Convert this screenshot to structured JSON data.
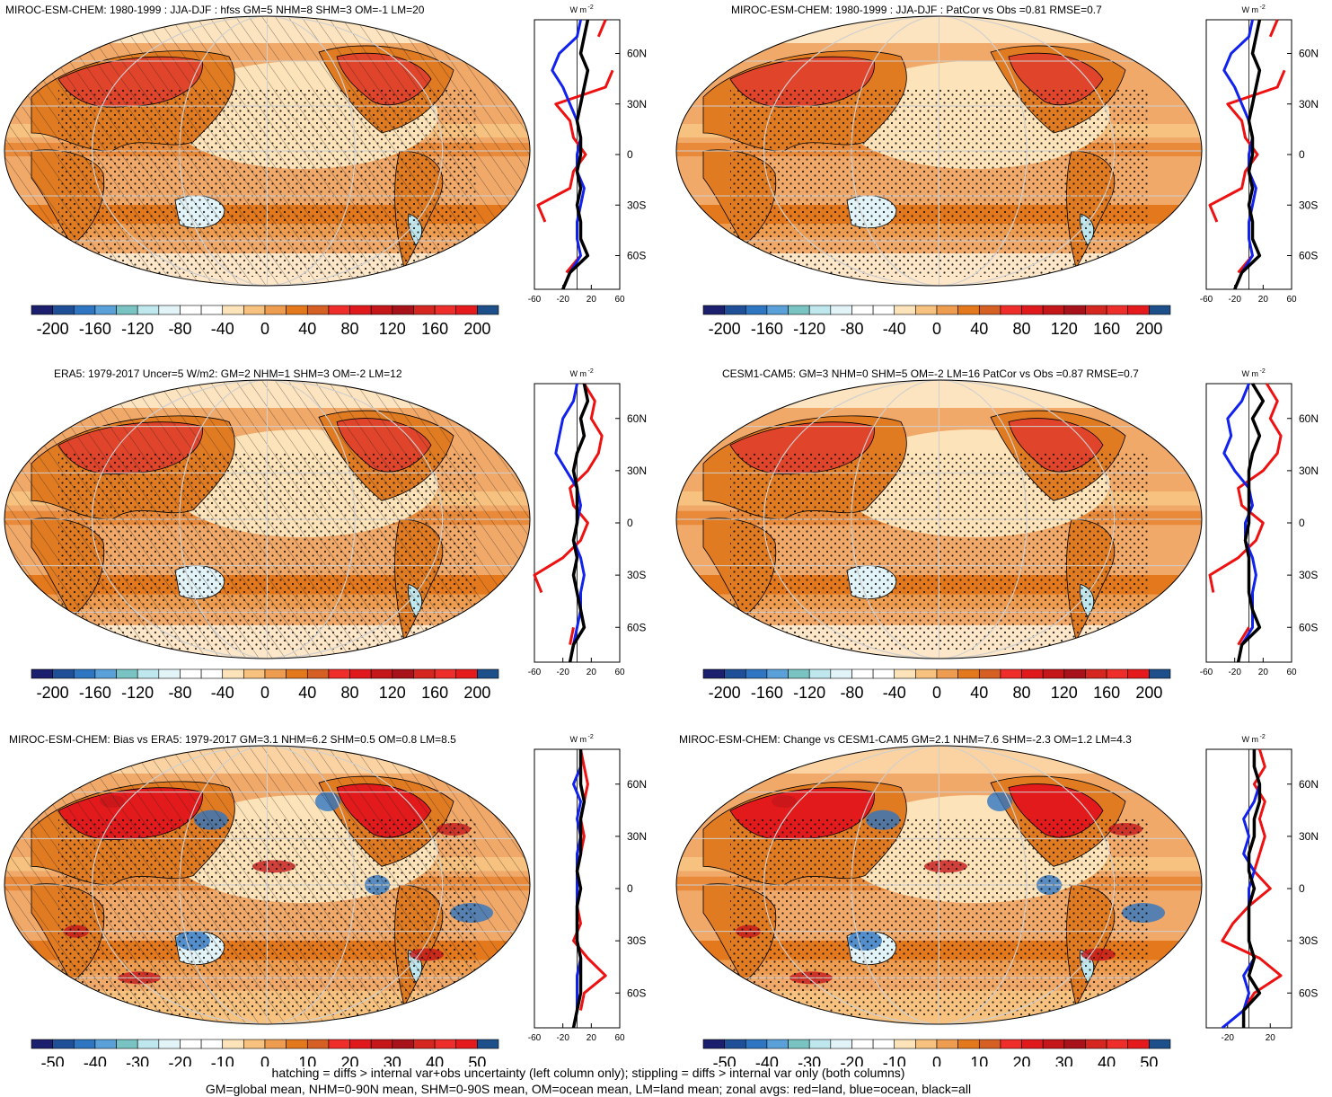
{
  "colors": {
    "scale": [
      "#1b1f6e",
      "#1f4f97",
      "#2f76c2",
      "#5aa1d9",
      "#79c3c3",
      "#bfe7ee",
      "#e3f4f8",
      "#ffffff",
      "#ffffff",
      "#fde3b9",
      "#f7c27f",
      "#ee9d50",
      "#e3781d",
      "#d65f23",
      "#ef2e2b",
      "#e01a1c",
      "#c5161a",
      "#a8121a",
      "#d5271f",
      "#ee2e2b",
      "#e41a1c",
      "#1d4f8a"
    ],
    "land_zonal": "#ee1111",
    "ocean_zonal": "#1122ee",
    "all_zonal": "#000000"
  },
  "panels": [
    {
      "title": "MIROC-ESM-CHEM: 1980-1999 : JJA-DJF : hfss GM=5 NHM=8 SHM=3 OM=-1 LM=20",
      "units": "W m",
      "units_exp": "-2",
      "cbar_labels": [
        "-200",
        "-160",
        "-120",
        "-80",
        "-40",
        "0",
        "40",
        "80",
        "120",
        "160",
        "200"
      ],
      "zonal_xticks": [
        "-60",
        "-20",
        "20",
        "60"
      ],
      "zonal_xrange": [
        -60,
        60
      ],
      "lat_labels": [
        "60N",
        "30N",
        "0",
        "30S",
        "60S"
      ],
      "hatching": true,
      "chart_data": {
        "type": "line",
        "lat": [
          -80,
          -70,
          -60,
          -50,
          -40,
          -30,
          -20,
          -10,
          0,
          10,
          20,
          30,
          40,
          50,
          60,
          70,
          80
        ],
        "series": [
          {
            "values": [
              null,
              -15,
              5,
              null,
              -45,
              -55,
              -10,
              -5,
              12,
              -5,
              -10,
              -30,
              40,
              50,
              null,
              30,
              40
            ]
          },
          {
            "values": [
              null,
              -10,
              5,
              0,
              0,
              5,
              10,
              0,
              0,
              5,
              0,
              -10,
              -20,
              -35,
              -25,
              0,
              5
            ]
          },
          {
            "values": [
              -20,
              -10,
              15,
              5,
              5,
              0,
              5,
              0,
              5,
              5,
              0,
              5,
              10,
              15,
              5,
              10,
              15
            ]
          }
        ]
      }
    },
    {
      "title": "MIROC-ESM-CHEM: 1980-1999 : JJA-DJF : PatCor vs Obs =0.81 RMSE=0.7",
      "units": "W m",
      "units_exp": "-2",
      "cbar_labels": [
        "-200",
        "-160",
        "-120",
        "-80",
        "-40",
        "0",
        "40",
        "80",
        "120",
        "160",
        "200"
      ],
      "zonal_xticks": [
        "-60",
        "-20",
        "20",
        "60"
      ],
      "zonal_xrange": [
        -60,
        60
      ],
      "lat_labels": [
        "60N",
        "30N",
        "0",
        "30S",
        "60S"
      ],
      "hatching": false,
      "chart_data": {
        "type": "line",
        "lat": [
          -80,
          -70,
          -60,
          -50,
          -40,
          -30,
          -20,
          -10,
          0,
          10,
          20,
          30,
          40,
          50,
          60,
          70,
          80
        ],
        "series": [
          {
            "values": [
              null,
              -15,
              5,
              null,
              -45,
              -55,
              -10,
              -5,
              12,
              -5,
              -10,
              -30,
              40,
              50,
              null,
              30,
              40
            ]
          },
          {
            "values": [
              null,
              -10,
              5,
              0,
              0,
              5,
              10,
              0,
              0,
              5,
              0,
              -10,
              -20,
              -35,
              -25,
              0,
              5
            ]
          },
          {
            "values": [
              -20,
              -10,
              15,
              5,
              5,
              0,
              5,
              0,
              5,
              5,
              0,
              5,
              10,
              15,
              5,
              10,
              15
            ]
          }
        ]
      }
    },
    {
      "title": "ERA5: 1979-2017 Uncer=5 W/m2: GM=2 NHM=1 SHM=3 OM=-2 LM=12",
      "units": "W m",
      "units_exp": "-2",
      "cbar_labels": [
        "-200",
        "-160",
        "-120",
        "-80",
        "-40",
        "0",
        "40",
        "80",
        "120",
        "160",
        "200"
      ],
      "zonal_xticks": [
        "-60",
        "-20",
        "20",
        "60"
      ],
      "zonal_xrange": [
        -60,
        60
      ],
      "lat_labels": [
        "60N",
        "30N",
        "0",
        "30S",
        "60S"
      ],
      "hatching": true,
      "chart_data": {
        "type": "line",
        "lat": [
          -80,
          -70,
          -60,
          -50,
          -40,
          -30,
          -20,
          -10,
          0,
          10,
          20,
          30,
          40,
          50,
          60,
          70,
          80
        ],
        "series": [
          {
            "values": [
              null,
              -10,
              -5,
              null,
              -50,
              -60,
              -20,
              5,
              15,
              -5,
              -10,
              15,
              30,
              35,
              20,
              25,
              10
            ]
          },
          {
            "values": [
              null,
              -5,
              0,
              5,
              5,
              10,
              5,
              -5,
              0,
              5,
              0,
              -15,
              -30,
              -25,
              -20,
              -5,
              0
            ]
          },
          {
            "values": [
              -10,
              -5,
              10,
              5,
              0,
              -5,
              0,
              -5,
              0,
              0,
              0,
              -5,
              0,
              10,
              5,
              15,
              10
            ]
          }
        ]
      }
    },
    {
      "title": "CESM1-CAM5: GM=3 NHM=0 SHM=5 OM=-2 LM=16 PatCor vs Obs =0.87 RMSE=0.7",
      "units": "W m",
      "units_exp": "-2",
      "cbar_labels": [
        "-200",
        "-160",
        "-120",
        "-80",
        "-40",
        "0",
        "40",
        "80",
        "120",
        "160",
        "200"
      ],
      "zonal_xticks": [
        "-60",
        "-20",
        "20",
        "60"
      ],
      "zonal_xrange": [
        -60,
        60
      ],
      "lat_labels": [
        "60N",
        "30N",
        "0",
        "30S",
        "60S"
      ],
      "hatching": false,
      "chart_data": {
        "type": "line",
        "lat": [
          -80,
          -70,
          -60,
          -50,
          -40,
          -30,
          -20,
          -10,
          0,
          10,
          20,
          30,
          40,
          50,
          60,
          70,
          80
        ],
        "series": [
          {
            "values": [
              null,
              -15,
              0,
              null,
              -50,
              -55,
              -15,
              10,
              20,
              -10,
              -15,
              20,
              40,
              45,
              30,
              40,
              25
            ]
          },
          {
            "values": [
              null,
              -10,
              5,
              5,
              5,
              10,
              5,
              -5,
              -5,
              5,
              0,
              -20,
              -35,
              -25,
              -30,
              -10,
              0
            ]
          },
          {
            "values": [
              -15,
              -10,
              15,
              5,
              0,
              0,
              0,
              -5,
              0,
              0,
              0,
              0,
              5,
              15,
              5,
              20,
              5
            ]
          }
        ]
      }
    },
    {
      "title": "MIROC-ESM-CHEM: Bias vs ERA5: 1979-2017 GM=3.1 NHM=6.2 SHM=0.5 OM=0.8 LM=8.5",
      "units": "W m",
      "units_exp": "-2",
      "cbar_labels": [
        "-50",
        "-40",
        "-30",
        "-20",
        "-10",
        "0",
        "10",
        "20",
        "30",
        "40",
        "50"
      ],
      "zonal_xticks": [
        "-60",
        "-20",
        "20",
        "60"
      ],
      "zonal_xrange": [
        -60,
        60
      ],
      "lat_labels": [
        "60N",
        "30N",
        "0",
        "30S",
        "60S"
      ],
      "hatching": true,
      "chart_data": {
        "type": "line",
        "lat": [
          -80,
          -70,
          -60,
          -50,
          -40,
          -30,
          -20,
          -10,
          0,
          10,
          20,
          30,
          40,
          50,
          60,
          70,
          80
        ],
        "series": [
          {
            "values": [
              null,
              5,
              10,
              40,
              15,
              -5,
              5,
              0,
              5,
              0,
              5,
              10,
              5,
              10,
              15,
              10,
              5
            ]
          },
          {
            "values": [
              null,
              0,
              0,
              0,
              5,
              0,
              0,
              0,
              0,
              0,
              0,
              5,
              0,
              5,
              -5,
              5,
              5
            ]
          },
          {
            "values": [
              -5,
              0,
              5,
              5,
              5,
              0,
              0,
              0,
              5,
              0,
              5,
              5,
              5,
              10,
              5,
              5,
              5
            ]
          }
        ]
      }
    },
    {
      "title": "MIROC-ESM-CHEM: Change vs CESM1-CAM5 GM=2.1 NHM=7.6 SHM=-2.3 OM=1.2 LM=4.3",
      "units": "W m",
      "units_exp": "-2",
      "cbar_labels": [
        "-50",
        "-40",
        "-30",
        "-20",
        "-10",
        "0",
        "10",
        "20",
        "30",
        "40",
        "50"
      ],
      "zonal_xticks": [
        "-20",
        "20"
      ],
      "zonal_xrange": [
        -40,
        40
      ],
      "lat_labels": [
        "60N",
        "30N",
        "0",
        "30S",
        "60S"
      ],
      "hatching": false,
      "chart_data": {
        "type": "line",
        "lat": [
          -80,
          -70,
          -60,
          -50,
          -40,
          -30,
          -20,
          -10,
          0,
          10,
          20,
          30,
          40,
          50,
          60,
          70,
          80
        ],
        "series": [
          {
            "values": [
              null,
              -5,
              5,
              30,
              10,
              -25,
              -15,
              0,
              20,
              5,
              10,
              15,
              10,
              15,
              5,
              15,
              10
            ]
          },
          {
            "values": [
              -25,
              -5,
              0,
              -5,
              5,
              0,
              0,
              0,
              0,
              5,
              -5,
              0,
              -5,
              5,
              10,
              5,
              5
            ]
          },
          {
            "values": [
              -5,
              -5,
              10,
              0,
              5,
              0,
              0,
              0,
              5,
              0,
              0,
              5,
              5,
              10,
              10,
              5,
              5
            ]
          }
        ]
      }
    }
  ],
  "footer": {
    "line1": "hatching = diffs > internal var+obs uncertainty (left column only); stippling = diffs > internal var only (both columns)",
    "line2": "GM=global mean, NHM=0-90N mean, SHM=0-90S mean, OM=ocean mean, LM=land mean; zonal avgs: red=land, blue=ocean, black=all"
  }
}
